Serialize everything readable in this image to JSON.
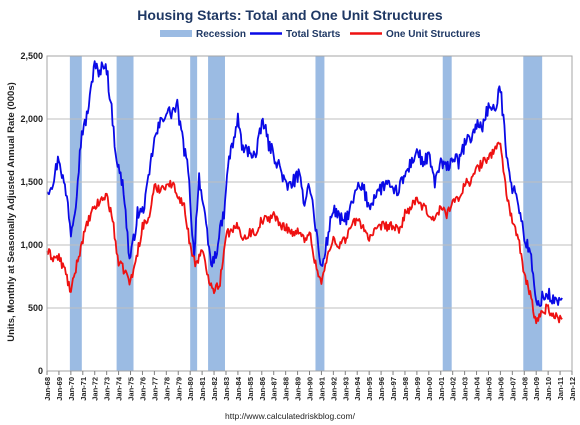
{
  "chart_data": {
    "type": "line",
    "title": "Housing Starts: Total and One Unit Structures",
    "ylabel": "Units, Monthly at Seasonally Adjusted Annual Rate (000s)",
    "xlabel": "",
    "source": "http://www.calculatedriskblog.com/",
    "ylim": [
      0,
      2500
    ],
    "xlim": [
      "Jan-68",
      "Jan-12"
    ],
    "yticks": [
      "0",
      "500",
      "1,000",
      "1,500",
      "2,000",
      "2,500"
    ],
    "ytick_values": [
      0,
      500,
      1000,
      1500,
      2000,
      2500
    ],
    "xticks": [
      "Jan-68",
      "Jan-69",
      "Jan-70",
      "Jan-71",
      "Jan-72",
      "Jan-73",
      "Jan-74",
      "Jan-75",
      "Jan-76",
      "Jan-77",
      "Jan-78",
      "Jan-79",
      "Jan-80",
      "Jan-81",
      "Jan-82",
      "Jan-83",
      "Jan-84",
      "Jan-85",
      "Jan-86",
      "Jan-87",
      "Jan-88",
      "Jan-89",
      "Jan-90",
      "Jan-91",
      "Jan-92",
      "Jan-93",
      "Jan-94",
      "Jan-95",
      "Jan-96",
      "Jan-97",
      "Jan-98",
      "Jan-99",
      "Jan-00",
      "Jan-01",
      "Jan-02",
      "Jan-03",
      "Jan-04",
      "Jan-05",
      "Jan-06",
      "Jan-07",
      "Jan-08",
      "Jan-09",
      "Jan-10",
      "Jan-11",
      "Jan-12"
    ],
    "grid": "horizontal",
    "legend_position": "top",
    "legend": [
      {
        "label": "Recession",
        "kind": "band",
        "color": "#9bbbe3"
      },
      {
        "label": "Total Starts",
        "kind": "line",
        "color": "#0a0ae6"
      },
      {
        "label": "One Unit Structures",
        "kind": "line",
        "color": "#ee1111"
      }
    ],
    "recessions": [
      {
        "start": "Dec-69",
        "end": "Nov-70"
      },
      {
        "start": "Nov-73",
        "end": "Mar-75"
      },
      {
        "start": "Jan-80",
        "end": "Jul-80"
      },
      {
        "start": "Jul-81",
        "end": "Nov-82"
      },
      {
        "start": "Jul-90",
        "end": "Mar-91"
      },
      {
        "start": "Mar-01",
        "end": "Nov-01"
      },
      {
        "start": "Dec-07",
        "end": "Jun-09"
      }
    ],
    "series": [
      {
        "name": "Total Starts",
        "color": "#0a0ae6",
        "points": [
          [
            "Jan-68",
            1420
          ],
          [
            "Jul-68",
            1510
          ],
          [
            "Jan-69",
            1700
          ],
          [
            "Apr-69",
            1570
          ],
          [
            "Oct-69",
            1330
          ],
          [
            "Jan-70",
            1100
          ],
          [
            "Jun-70",
            1350
          ],
          [
            "Dec-70",
            1900
          ],
          [
            "Mar-71",
            1950
          ],
          [
            "Aug-71",
            2150
          ],
          [
            "Jan-72",
            2470
          ],
          [
            "May-72",
            2330
          ],
          [
            "Oct-72",
            2450
          ],
          [
            "Jan-73",
            2400
          ],
          [
            "Jun-73",
            2070
          ],
          [
            "Oct-73",
            1750
          ],
          [
            "Jan-74",
            1600
          ],
          [
            "Jun-74",
            1450
          ],
          [
            "Dec-74",
            880
          ],
          [
            "Mar-75",
            980
          ],
          [
            "Aug-75",
            1250
          ],
          [
            "Jan-76",
            1260
          ],
          [
            "Jun-76",
            1450
          ],
          [
            "Dec-76",
            1800
          ],
          [
            "Jun-77",
            1950
          ],
          [
            "Dec-77",
            2050
          ],
          [
            "Jun-78",
            2050
          ],
          [
            "Dec-78",
            2100
          ],
          [
            "Jun-79",
            1800
          ],
          [
            "Dec-79",
            1550
          ],
          [
            "Mar-80",
            1050
          ],
          [
            "May-80",
            950
          ],
          [
            "Oct-80",
            1550
          ],
          [
            "Mar-81",
            1250
          ],
          [
            "Oct-81",
            850
          ],
          [
            "Feb-82",
            900
          ],
          [
            "Jul-82",
            1100
          ],
          [
            "Dec-82",
            1300
          ],
          [
            "Mar-83",
            1650
          ],
          [
            "Aug-83",
            1800
          ],
          [
            "Jan-84",
            2000
          ],
          [
            "Jun-84",
            1750
          ],
          [
            "Jan-85",
            1750
          ],
          [
            "Jul-85",
            1700
          ],
          [
            "Feb-86",
            2000
          ],
          [
            "Aug-86",
            1800
          ],
          [
            "Feb-87",
            1700
          ],
          [
            "Aug-87",
            1600
          ],
          [
            "Feb-88",
            1450
          ],
          [
            "Aug-88",
            1500
          ],
          [
            "Feb-89",
            1550
          ],
          [
            "Aug-89",
            1350
          ],
          [
            "Jan-90",
            1500
          ],
          [
            "Jul-90",
            1150
          ],
          [
            "Jan-91",
            800
          ],
          [
            "Jul-91",
            1050
          ],
          [
            "Jan-92",
            1300
          ],
          [
            "Jul-92",
            1200
          ],
          [
            "Jan-93",
            1200
          ],
          [
            "Jul-93",
            1300
          ],
          [
            "Jan-94",
            1450
          ],
          [
            "Jul-94",
            1450
          ],
          [
            "Jan-95",
            1300
          ],
          [
            "Jul-95",
            1400
          ],
          [
            "Jan-96",
            1450
          ],
          [
            "Jul-96",
            1500
          ],
          [
            "Jan-97",
            1400
          ],
          [
            "Jul-97",
            1450
          ],
          [
            "Jan-98",
            1550
          ],
          [
            "Jul-98",
            1650
          ],
          [
            "Jan-99",
            1750
          ],
          [
            "Jul-99",
            1650
          ],
          [
            "Jan-00",
            1700
          ],
          [
            "Jul-00",
            1500
          ],
          [
            "Jan-01",
            1650
          ],
          [
            "Jul-01",
            1600
          ],
          [
            "Jan-02",
            1700
          ],
          [
            "Jul-02",
            1650
          ],
          [
            "Jan-03",
            1800
          ],
          [
            "Jul-03",
            1850
          ],
          [
            "Jan-04",
            1950
          ],
          [
            "Jul-04",
            1950
          ],
          [
            "Jan-05",
            2100
          ],
          [
            "Jul-05",
            2050
          ],
          [
            "Jan-06",
            2250
          ],
          [
            "Jul-06",
            1750
          ],
          [
            "Jan-07",
            1450
          ],
          [
            "Jul-07",
            1350
          ],
          [
            "Jan-08",
            1050
          ],
          [
            "Jul-08",
            950
          ],
          [
            "Jan-09",
            520
          ],
          [
            "Jul-09",
            580
          ],
          [
            "Jan-10",
            610
          ],
          [
            "Jul-10",
            550
          ],
          [
            "Jan-11",
            570
          ],
          [
            "Mar-11",
            580
          ]
        ]
      },
      {
        "name": "One Unit Structures",
        "color": "#ee1111",
        "points": [
          [
            "Jan-68",
            950
          ],
          [
            "Jul-68",
            900
          ],
          [
            "Jan-69",
            900
          ],
          [
            "Jul-69",
            800
          ],
          [
            "Jan-70",
            620
          ],
          [
            "Jul-70",
            850
          ],
          [
            "Jan-71",
            1050
          ],
          [
            "Jul-71",
            1200
          ],
          [
            "Jan-72",
            1300
          ],
          [
            "Jul-72",
            1350
          ],
          [
            "Jan-73",
            1400
          ],
          [
            "Jul-73",
            1200
          ],
          [
            "Jan-74",
            850
          ],
          [
            "Jul-74",
            800
          ],
          [
            "Jan-75",
            700
          ],
          [
            "Jul-75",
            900
          ],
          [
            "Jan-76",
            1150
          ],
          [
            "Jul-76",
            1200
          ],
          [
            "Jan-77",
            1450
          ],
          [
            "Jul-77",
            1450
          ],
          [
            "Jan-78",
            1480
          ],
          [
            "Jul-78",
            1480
          ],
          [
            "Jan-79",
            1400
          ],
          [
            "Jul-79",
            1300
          ],
          [
            "Jan-80",
            1000
          ],
          [
            "Jun-80",
            850
          ],
          [
            "Jan-81",
            950
          ],
          [
            "Jul-81",
            750
          ],
          [
            "Jan-82",
            650
          ],
          [
            "Jul-82",
            700
          ],
          [
            "Jan-83",
            1100
          ],
          [
            "Jul-83",
            1100
          ],
          [
            "Jan-84",
            1150
          ],
          [
            "Jul-84",
            1050
          ],
          [
            "Jan-85",
            1100
          ],
          [
            "Jul-85",
            1100
          ],
          [
            "Jan-86",
            1200
          ],
          [
            "Jul-86",
            1200
          ],
          [
            "Jan-87",
            1250
          ],
          [
            "Jul-87",
            1150
          ],
          [
            "Jan-88",
            1150
          ],
          [
            "Jul-88",
            1100
          ],
          [
            "Jan-89",
            1100
          ],
          [
            "Jul-89",
            1050
          ],
          [
            "Jan-90",
            1100
          ],
          [
            "Jul-90",
            850
          ],
          [
            "Jan-91",
            700
          ],
          [
            "Jul-91",
            900
          ],
          [
            "Jan-92",
            1050
          ],
          [
            "Jul-92",
            1000
          ],
          [
            "Jan-93",
            1050
          ],
          [
            "Jul-93",
            1150
          ],
          [
            "Jan-94",
            1200
          ],
          [
            "Jul-94",
            1150
          ],
          [
            "Jan-95",
            1050
          ],
          [
            "Jul-95",
            1100
          ],
          [
            "Jan-96",
            1150
          ],
          [
            "Jul-96",
            1150
          ],
          [
            "Jan-97",
            1150
          ],
          [
            "Jul-97",
            1100
          ],
          [
            "Jan-98",
            1250
          ],
          [
            "Jul-98",
            1300
          ],
          [
            "Jan-99",
            1350
          ],
          [
            "Jul-99",
            1300
          ],
          [
            "Jan-00",
            1250
          ],
          [
            "Jul-00",
            1200
          ],
          [
            "Jan-01",
            1300
          ],
          [
            "Jul-01",
            1250
          ],
          [
            "Jan-02",
            1350
          ],
          [
            "Jul-02",
            1350
          ],
          [
            "Jan-03",
            1500
          ],
          [
            "Jul-03",
            1500
          ],
          [
            "Jan-04",
            1600
          ],
          [
            "Jul-04",
            1650
          ],
          [
            "Jan-05",
            1700
          ],
          [
            "Jul-05",
            1750
          ],
          [
            "Jan-06",
            1820
          ],
          [
            "Jul-06",
            1400
          ],
          [
            "Jan-07",
            1200
          ],
          [
            "Jul-07",
            1050
          ],
          [
            "Jan-08",
            750
          ],
          [
            "Jul-08",
            620
          ],
          [
            "Jan-09",
            370
          ],
          [
            "Jul-09",
            480
          ],
          [
            "Jan-10",
            500
          ],
          [
            "Jul-10",
            430
          ],
          [
            "Jan-11",
            420
          ],
          [
            "Mar-11",
            410
          ]
        ]
      }
    ]
  }
}
